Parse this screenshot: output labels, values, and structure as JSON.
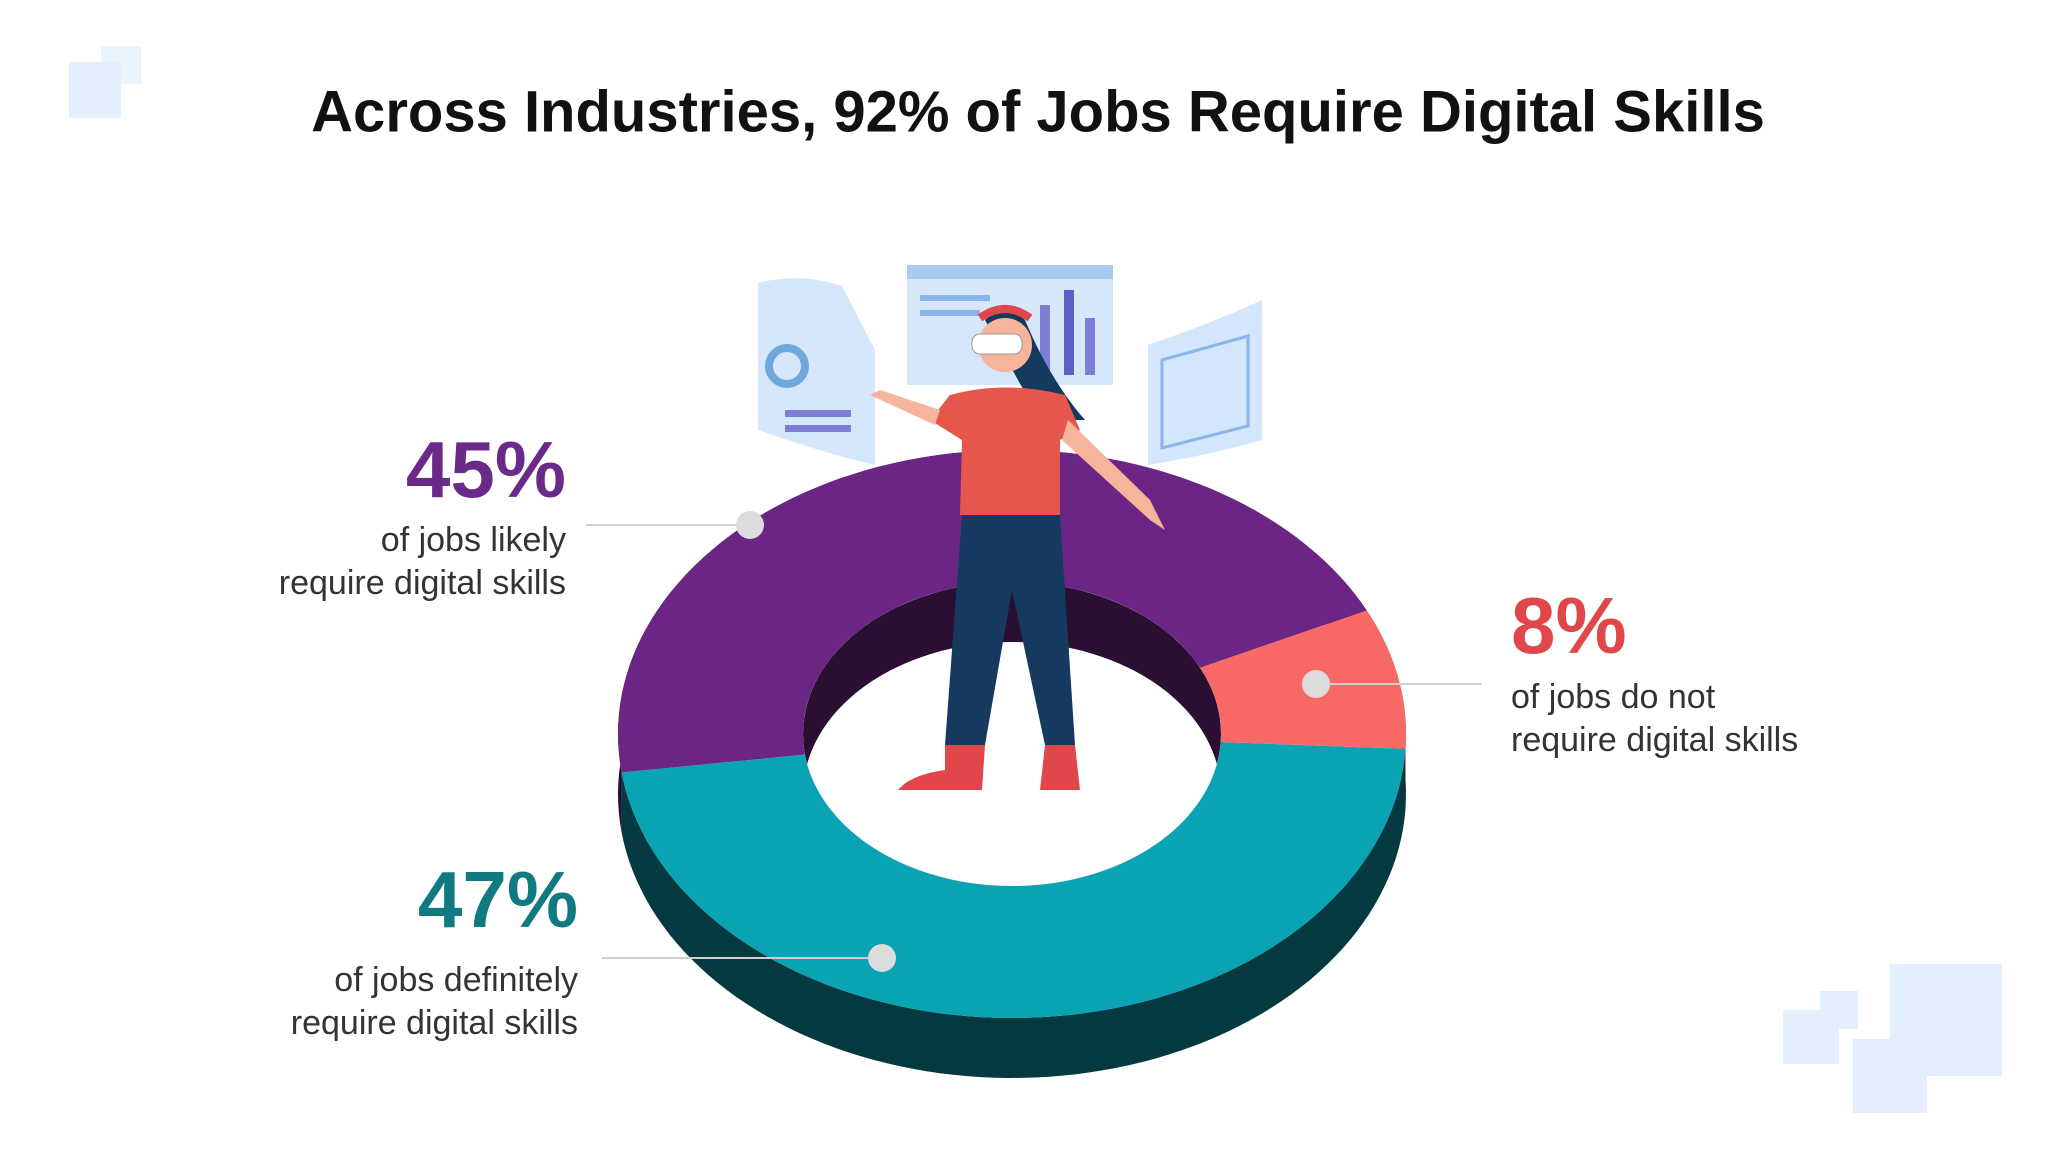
{
  "chart_data": {
    "type": "donut",
    "title": "Across Industries, 92% of Jobs Require Digital Skills",
    "categories": [
      [
        "of jobs likely",
        "require digital skills"
      ],
      [
        "of jobs definitely",
        "require digital skills"
      ],
      [
        "of jobs do not",
        "require digital skills"
      ]
    ],
    "values": [
      45,
      47,
      8
    ],
    "value_labels": [
      "45%",
      "47%",
      "8%"
    ],
    "colors": [
      "#6a2585",
      "#0aa3b3",
      "#f96a66"
    ],
    "label_colors": [
      "#6b2a8a",
      "#0f7a82",
      "#e0474a"
    ]
  }
}
